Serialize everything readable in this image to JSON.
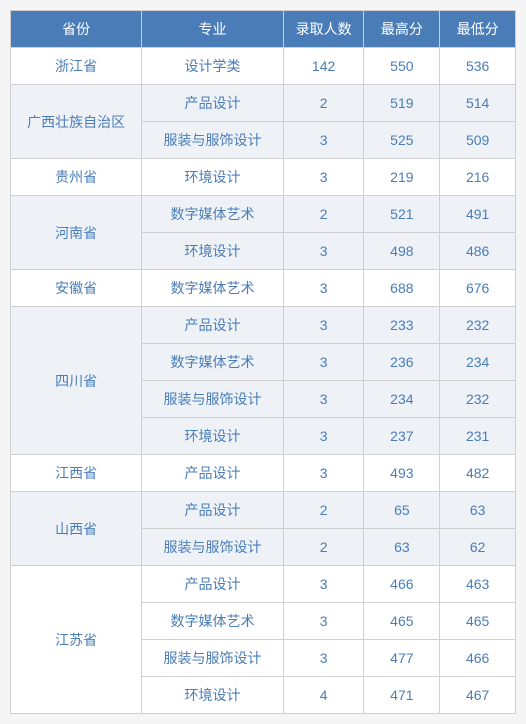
{
  "headers": {
    "province": "省份",
    "major": "专业",
    "count": "录取人数",
    "high": "最高分",
    "low": "最低分"
  },
  "colors": {
    "header_bg": "#4a7db8",
    "header_text": "#ffffff",
    "cell_text": "#4a7db8",
    "row_bg": "#ffffff",
    "alt_row_bg": "#eef2f7",
    "border": "#d0d0d0"
  },
  "column_widths": {
    "province": "26%",
    "major": "28%",
    "count": "16%",
    "high": "15%",
    "low": "15%"
  },
  "font_size": 14,
  "provinces": [
    {
      "name": "浙江省",
      "alt": false,
      "rows": [
        {
          "major": "设计学类",
          "count": 142,
          "high": 550,
          "low": 536
        }
      ]
    },
    {
      "name": "广西壮族自治区",
      "alt": true,
      "rows": [
        {
          "major": "产品设计",
          "count": 2,
          "high": 519,
          "low": 514
        },
        {
          "major": "服装与服饰设计",
          "count": 3,
          "high": 525,
          "low": 509
        }
      ]
    },
    {
      "name": "贵州省",
      "alt": false,
      "rows": [
        {
          "major": "环境设计",
          "count": 3,
          "high": 219,
          "low": 216
        }
      ]
    },
    {
      "name": "河南省",
      "alt": true,
      "rows": [
        {
          "major": "数字媒体艺术",
          "count": 2,
          "high": 521,
          "low": 491
        },
        {
          "major": "环境设计",
          "count": 3,
          "high": 498,
          "low": 486
        }
      ]
    },
    {
      "name": "安徽省",
      "alt": false,
      "rows": [
        {
          "major": "数字媒体艺术",
          "count": 3,
          "high": 688,
          "low": 676
        }
      ]
    },
    {
      "name": "四川省",
      "alt": true,
      "rows": [
        {
          "major": "产品设计",
          "count": 3,
          "high": 233,
          "low": 232
        },
        {
          "major": "数字媒体艺术",
          "count": 3,
          "high": 236,
          "low": 234
        },
        {
          "major": "服装与服饰设计",
          "count": 3,
          "high": 234,
          "low": 232
        },
        {
          "major": "环境设计",
          "count": 3,
          "high": 237,
          "low": 231
        }
      ]
    },
    {
      "name": "江西省",
      "alt": false,
      "rows": [
        {
          "major": "产品设计",
          "count": 3,
          "high": 493,
          "low": 482
        }
      ]
    },
    {
      "name": "山西省",
      "alt": true,
      "rows": [
        {
          "major": "产品设计",
          "count": 2,
          "high": 65,
          "low": 63
        },
        {
          "major": "服装与服饰设计",
          "count": 2,
          "high": 63,
          "low": 62
        }
      ]
    },
    {
      "name": "江苏省",
      "alt": false,
      "rows": [
        {
          "major": "产品设计",
          "count": 3,
          "high": 466,
          "low": 463
        },
        {
          "major": "数字媒体艺术",
          "count": 3,
          "high": 465,
          "low": 465
        },
        {
          "major": "服装与服饰设计",
          "count": 3,
          "high": 477,
          "low": 466
        },
        {
          "major": "环境设计",
          "count": 4,
          "high": 471,
          "low": 467
        }
      ]
    }
  ]
}
